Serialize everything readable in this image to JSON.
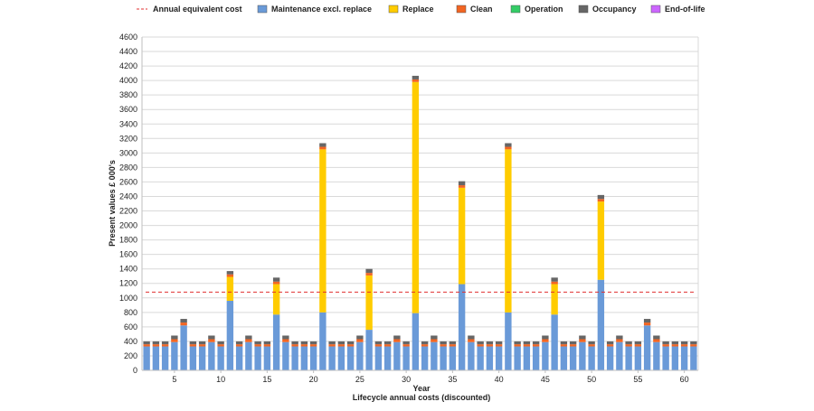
{
  "chart_data": {
    "type": "bar",
    "stacked": true,
    "xlabel": "Year",
    "ylabel": "Present values £ 000's",
    "caption": "Lifecycle annual costs (discounted)",
    "ylim": [
      0,
      4600
    ],
    "y_ticks": [
      0,
      200,
      400,
      600,
      800,
      1000,
      1200,
      1400,
      1600,
      1800,
      2000,
      2200,
      2400,
      2600,
      2800,
      3000,
      3200,
      3400,
      3600,
      3800,
      4000,
      4200,
      4400,
      4600
    ],
    "x_range": [
      2,
      61
    ],
    "x_ticks": [
      5,
      10,
      15,
      20,
      25,
      30,
      35,
      40,
      45,
      50,
      55,
      60
    ],
    "grid": true,
    "legend_position": "top",
    "x": [
      2,
      3,
      4,
      5,
      6,
      7,
      8,
      9,
      10,
      11,
      12,
      13,
      14,
      15,
      16,
      17,
      18,
      19,
      20,
      21,
      22,
      23,
      24,
      25,
      26,
      27,
      28,
      29,
      30,
      31,
      32,
      33,
      34,
      35,
      36,
      37,
      38,
      39,
      40,
      41,
      42,
      43,
      44,
      45,
      46,
      47,
      48,
      49,
      50,
      51,
      52,
      53,
      54,
      55,
      56,
      57,
      58,
      59,
      60,
      61
    ],
    "series": [
      {
        "name": "Maintenance excl. replace",
        "color": "#6a9ad8",
        "values": [
          330,
          330,
          330,
          390,
          620,
          330,
          330,
          390,
          330,
          960,
          330,
          390,
          330,
          330,
          770,
          390,
          330,
          330,
          330,
          800,
          330,
          330,
          330,
          390,
          560,
          330,
          330,
          390,
          330,
          790,
          330,
          390,
          330,
          330,
          1190,
          390,
          330,
          330,
          330,
          800,
          330,
          330,
          330,
          390,
          770,
          330,
          330,
          390,
          330,
          1250,
          330,
          390,
          330,
          330,
          620,
          390,
          330,
          330,
          330,
          330
        ]
      },
      {
        "name": "Replace",
        "color": "#ffcc00",
        "values": [
          0,
          0,
          0,
          0,
          0,
          0,
          0,
          0,
          0,
          330,
          0,
          0,
          0,
          0,
          420,
          0,
          0,
          0,
          0,
          2250,
          0,
          0,
          0,
          0,
          750,
          0,
          0,
          0,
          0,
          3190,
          0,
          0,
          0,
          0,
          1330,
          0,
          0,
          0,
          0,
          2250,
          0,
          0,
          0,
          0,
          420,
          0,
          0,
          0,
          0,
          1080,
          0,
          0,
          0,
          0,
          0,
          0,
          0,
          0,
          0,
          0
        ]
      },
      {
        "name": "Clean",
        "color": "#f26522",
        "values": [
          30,
          30,
          30,
          40,
          40,
          30,
          30,
          40,
          30,
          35,
          30,
          40,
          30,
          30,
          35,
          40,
          30,
          30,
          30,
          35,
          30,
          30,
          30,
          40,
          35,
          30,
          30,
          40,
          30,
          35,
          30,
          40,
          30,
          30,
          35,
          40,
          30,
          30,
          30,
          35,
          30,
          30,
          30,
          40,
          35,
          30,
          30,
          40,
          30,
          35,
          30,
          40,
          30,
          30,
          40,
          40,
          30,
          30,
          30,
          30
        ]
      },
      {
        "name": "Operation",
        "color": "#33cc66",
        "values": [
          0,
          0,
          0,
          0,
          0,
          0,
          0,
          0,
          0,
          0,
          0,
          0,
          0,
          0,
          0,
          0,
          0,
          0,
          0,
          0,
          0,
          0,
          0,
          0,
          0,
          0,
          0,
          0,
          0,
          0,
          0,
          0,
          0,
          0,
          0,
          0,
          0,
          0,
          0,
          0,
          0,
          0,
          0,
          0,
          0,
          0,
          0,
          0,
          0,
          0,
          0,
          0,
          0,
          0,
          0,
          0,
          0,
          0,
          0,
          0
        ]
      },
      {
        "name": "Occupancy",
        "color": "#666666",
        "values": [
          40,
          40,
          40,
          50,
          50,
          40,
          40,
          50,
          40,
          45,
          40,
          50,
          40,
          40,
          55,
          50,
          40,
          40,
          40,
          50,
          40,
          40,
          40,
          50,
          55,
          40,
          40,
          50,
          40,
          50,
          40,
          50,
          40,
          40,
          55,
          50,
          40,
          40,
          40,
          50,
          40,
          40,
          40,
          50,
          55,
          40,
          40,
          50,
          40,
          55,
          40,
          50,
          40,
          40,
          50,
          50,
          40,
          40,
          40,
          40
        ]
      },
      {
        "name": "End-of-life",
        "color": "#cc66ff",
        "values": [
          0,
          0,
          0,
          0,
          0,
          0,
          0,
          0,
          0,
          0,
          0,
          0,
          0,
          0,
          0,
          0,
          0,
          0,
          0,
          0,
          0,
          0,
          0,
          0,
          0,
          0,
          0,
          0,
          0,
          0,
          0,
          0,
          0,
          0,
          0,
          0,
          0,
          0,
          0,
          0,
          0,
          0,
          0,
          0,
          0,
          0,
          0,
          0,
          0,
          0,
          0,
          0,
          0,
          0,
          0,
          0,
          0,
          0,
          0,
          0
        ]
      }
    ],
    "reference_line": {
      "name": "Annual equivalent cost",
      "value": 1080,
      "color": "#e03030"
    }
  }
}
